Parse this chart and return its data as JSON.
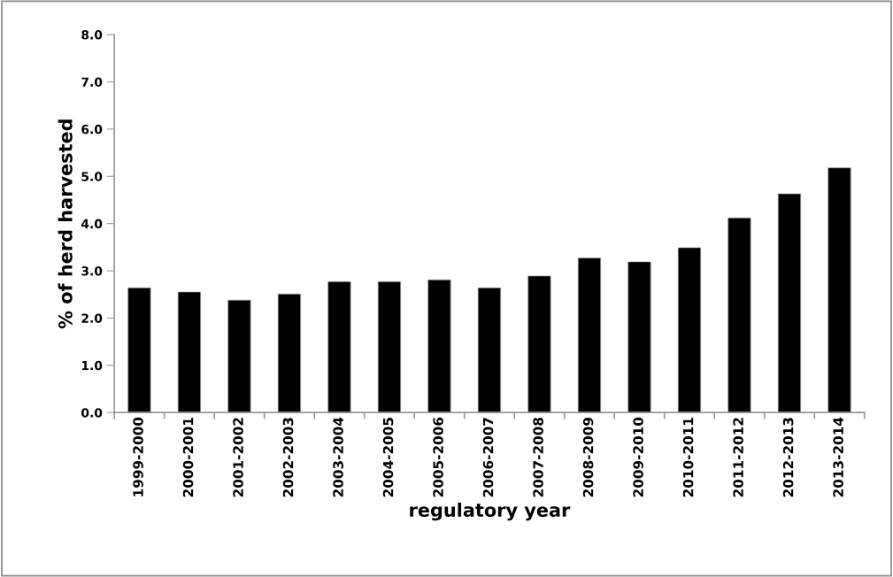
{
  "chart_data": {
    "type": "bar",
    "xlabel": "regulatory year",
    "ylabel": "% of herd harvested",
    "categories": [
      "1999-2000",
      "2000-2001",
      "2001-2002",
      "2002-2003",
      "2003-2004",
      "2004-2005",
      "2005-2006",
      "2006-2007",
      "2007-2008",
      "2008-2009",
      "2009-2010",
      "2010-2011",
      "2011-2012",
      "2012-2013",
      "2013-2014"
    ],
    "values": [
      2.64,
      2.55,
      2.38,
      2.51,
      2.77,
      2.77,
      2.81,
      2.64,
      2.89,
      3.27,
      3.19,
      3.49,
      4.12,
      4.63,
      5.18
    ],
    "color": "#000000",
    "ylim": [
      0,
      8
    ],
    "yticks": [
      {
        "value": 0,
        "label": "0.0"
      },
      {
        "value": 1,
        "label": "1.0"
      },
      {
        "value": 2,
        "label": "2.0"
      },
      {
        "value": 3,
        "label": "3.0"
      },
      {
        "value": 4,
        "label": "4.0"
      },
      {
        "value": 5,
        "label": "5.0"
      },
      {
        "value": 6,
        "label": "6.0"
      },
      {
        "value": 7,
        "label": "7.0"
      },
      {
        "value": 8,
        "label": "8.0"
      }
    ],
    "grid": false,
    "legend": false
  }
}
